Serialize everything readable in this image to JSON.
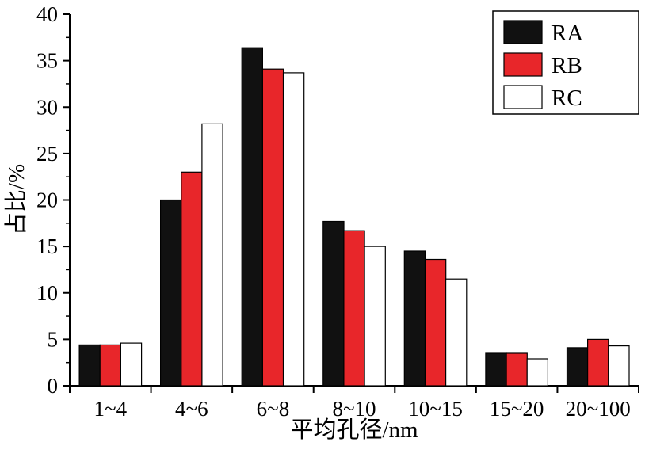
{
  "chart_data": {
    "type": "bar",
    "title": "",
    "xlabel": "平均孔径/nm",
    "ylabel": "占比/%",
    "categories": [
      "1~4",
      "4~6",
      "6~8",
      "8~10",
      "10~15",
      "15~20",
      "20~100"
    ],
    "series": [
      {
        "name": "RA",
        "color": "#111111",
        "values": [
          4.4,
          20.0,
          36.4,
          17.7,
          14.5,
          3.5,
          4.1
        ]
      },
      {
        "name": "RB",
        "color": "#e8262a",
        "values": [
          4.4,
          23.0,
          34.1,
          16.7,
          13.6,
          3.5,
          5.0
        ]
      },
      {
        "name": "RC",
        "color": "#ffffff",
        "values": [
          4.6,
          28.2,
          33.7,
          15.0,
          11.5,
          2.9,
          4.3
        ]
      }
    ],
    "ylim": [
      0,
      40
    ],
    "ytick_step": 5,
    "ytick_labels": [
      "0",
      "5",
      "10",
      "15",
      "20",
      "25",
      "30",
      "35",
      "40"
    ],
    "yminor_step": 2.5,
    "grid": false,
    "legend_position": "top-right",
    "axis_color": "#000000",
    "bar_edge_color": "#000000",
    "background_color": "#ffffff"
  }
}
